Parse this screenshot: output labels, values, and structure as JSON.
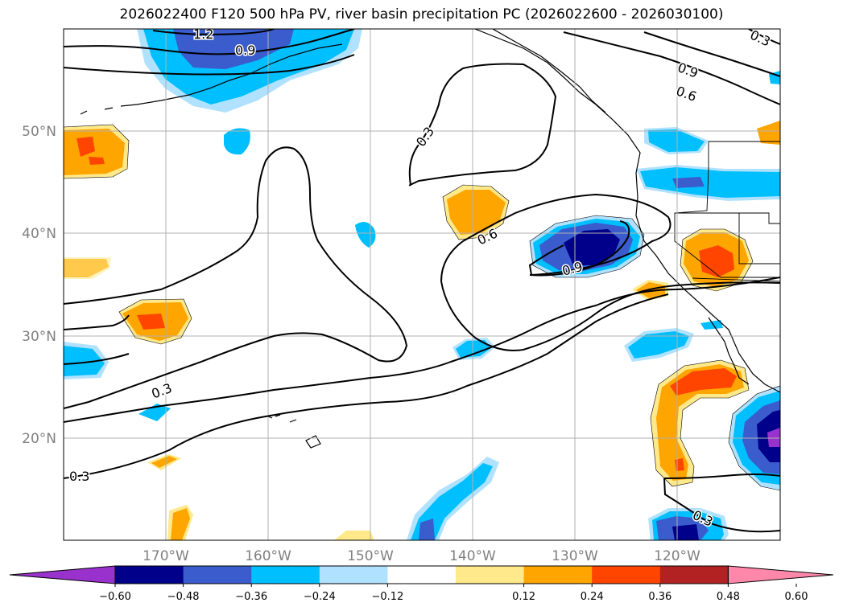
{
  "title": "2026022400 F120 500 hPa PV, river basin precipitation PC (2026022600 - 2026030100)",
  "lat_labels": [
    "50°N",
    "40°N",
    "30°N",
    "20°N"
  ],
  "lon_labels": [
    "170°W",
    "160°W",
    "150°W",
    "140°W",
    "130°W",
    "120°W"
  ],
  "pv_contour_labels": [
    "1.2",
    "0.9",
    "0.3",
    "0.6",
    "0.9",
    "0.6",
    "0.9",
    "0.3",
    "0.3",
    "0.3",
    "0.3"
  ],
  "colorbar": {
    "ticks": [
      "−0.60",
      "−0.48",
      "−0.36",
      "−0.24",
      "−0.12",
      "0.12",
      "0.24",
      "0.36",
      "0.48",
      "0.60"
    ],
    "colors": [
      "#9932cc",
      "#00008b",
      "#3a5ccc",
      "#00bfff",
      "#b0e2ff",
      "#ffffff",
      "#ffe98a",
      "#ffa500",
      "#ff4500",
      "#b22222",
      "#ff88aa"
    ]
  },
  "colors": {
    "grid": "#b0b0b0",
    "contour": "#000000",
    "tick_label": "#808080"
  }
}
